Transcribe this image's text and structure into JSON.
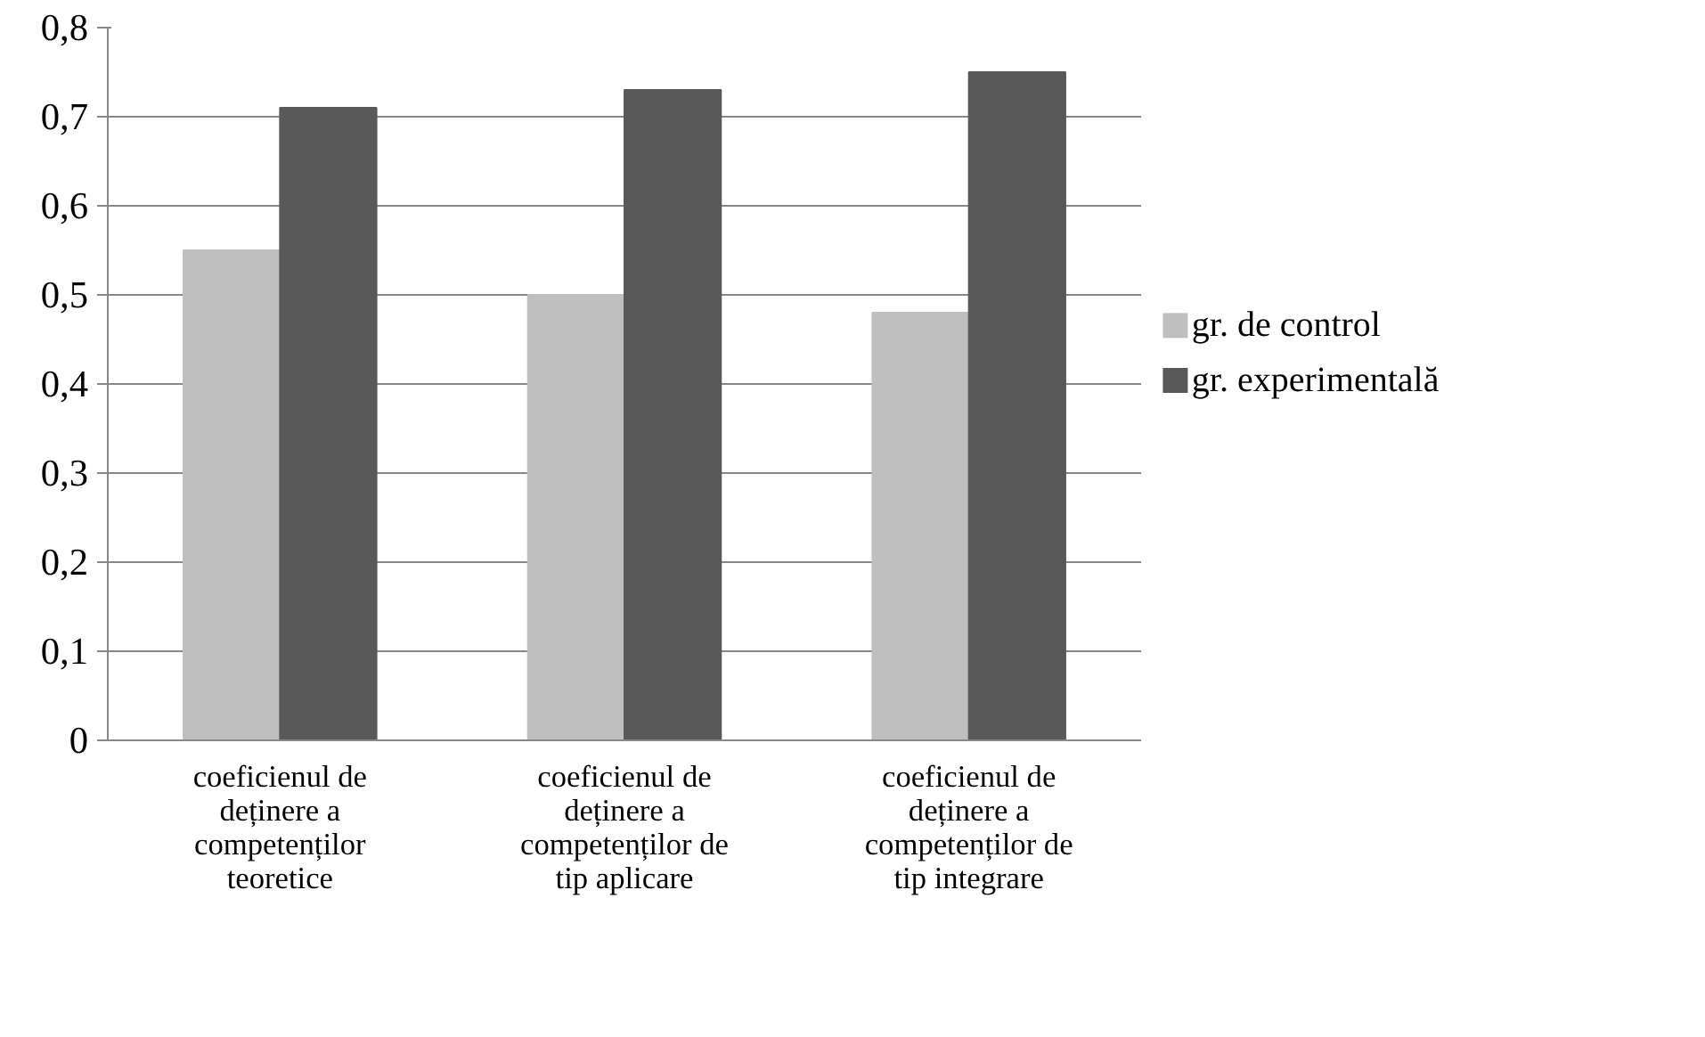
{
  "chart_data": {
    "type": "bar",
    "categories": [
      "coeficienul de deținere a competenților teoretice",
      "coeficienul de deținere a competenților de tip aplicare",
      "coeficienul de deținere a competenților de tip integrare"
    ],
    "series": [
      {
        "name": "gr. de control",
        "color": "#bfbfbf",
        "values": [
          0.55,
          0.5,
          0.48
        ]
      },
      {
        "name": "gr. experimentală",
        "color": "#595959",
        "values": [
          0.71,
          0.73,
          0.75
        ]
      }
    ],
    "ylim": [
      0,
      0.8
    ],
    "yticks": [
      {
        "value": 0,
        "label": "0"
      },
      {
        "value": 0.1,
        "label": "0,1"
      },
      {
        "value": 0.2,
        "label": "0,2"
      },
      {
        "value": 0.3,
        "label": "0,3"
      },
      {
        "value": 0.4,
        "label": "0,4"
      },
      {
        "value": 0.5,
        "label": "0,5"
      },
      {
        "value": 0.6,
        "label": "0,6"
      },
      {
        "value": 0.7,
        "label": "0,7"
      },
      {
        "value": 0.8,
        "label": "0,8"
      }
    ],
    "grid": "y",
    "legend": "right"
  }
}
